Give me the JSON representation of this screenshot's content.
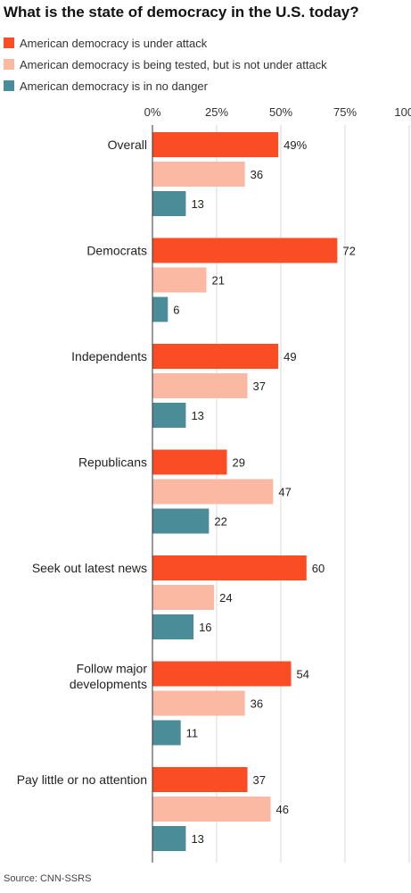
{
  "title": "What is the state of democracy in the U.S. today?",
  "source": "Source: CNN-SSRS",
  "legend": [
    {
      "label": "American democracy is under attack",
      "color": "#fa4d24"
    },
    {
      "label": "American democracy is being tested, but is not under attack",
      "color": "#fbb9a3"
    },
    {
      "label": "American democracy is in no danger",
      "color": "#4a8c98"
    }
  ],
  "chart_data": {
    "type": "bar",
    "orientation": "horizontal",
    "title": "What is the state of democracy in the U.S. today?",
    "xlim": [
      0,
      100
    ],
    "x_ticks": [
      "0%",
      "25%",
      "50%",
      "75%",
      "100%"
    ],
    "x_tick_values": [
      0,
      25,
      50,
      75,
      100
    ],
    "grid": true,
    "legend_position": "top-left",
    "categories": [
      "Overall",
      "Democrats",
      "Independents",
      "Republicans",
      "Seek out latest news",
      "Follow major developments",
      "Pay little or no attention"
    ],
    "series": [
      {
        "name": "American democracy is under attack",
        "color": "#fa4d24",
        "values": [
          49,
          72,
          49,
          29,
          60,
          54,
          37
        ],
        "labels": [
          "49%",
          "72",
          "49",
          "29",
          "60",
          "54",
          "37"
        ]
      },
      {
        "name": "American democracy is being tested, but is not under attack",
        "color": "#fbb9a3",
        "values": [
          36,
          21,
          37,
          47,
          24,
          36,
          46
        ],
        "labels": [
          "36",
          "21",
          "37",
          "47",
          "24",
          "36",
          "46"
        ]
      },
      {
        "name": "American democracy is in no danger",
        "color": "#4a8c98",
        "values": [
          13,
          6,
          13,
          22,
          16,
          11,
          13
        ],
        "labels": [
          "13",
          "6",
          "13",
          "22",
          "16",
          "11",
          "13"
        ]
      }
    ]
  }
}
